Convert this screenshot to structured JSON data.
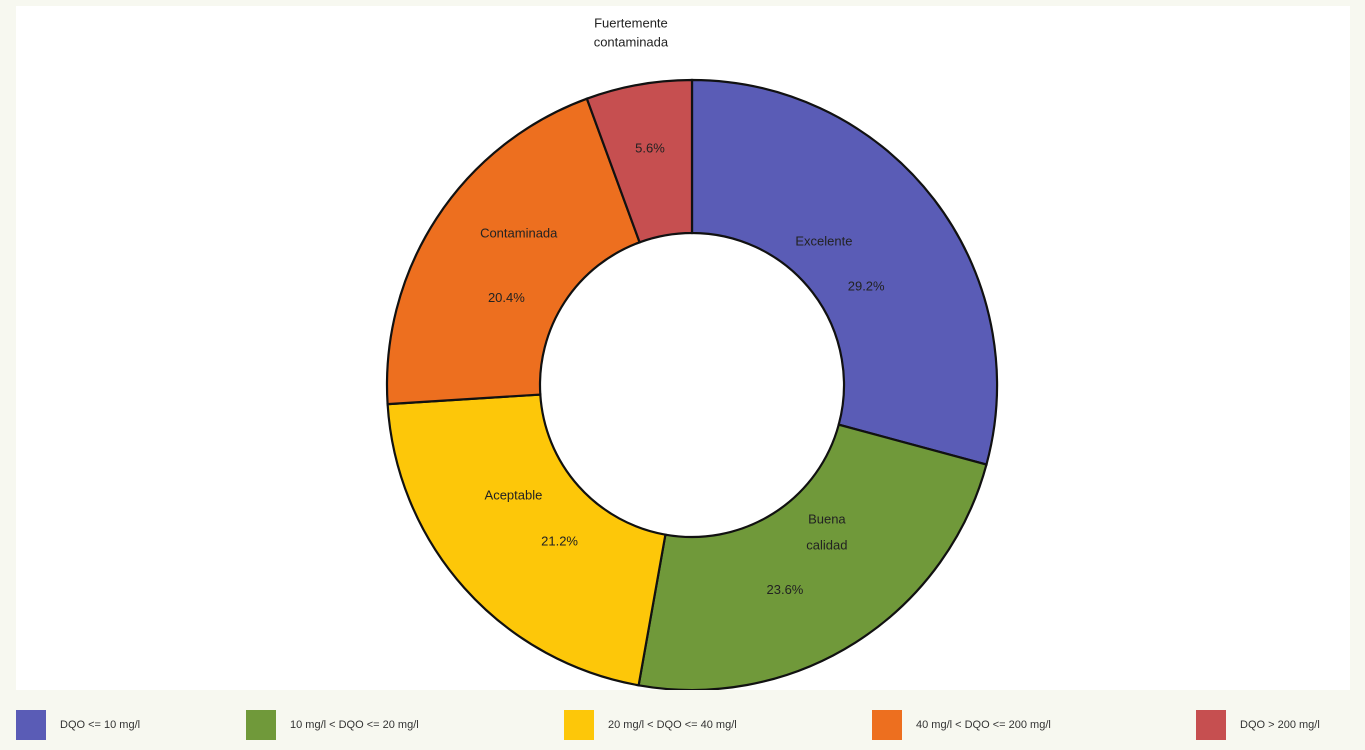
{
  "chart_data": {
    "type": "pie",
    "donut": true,
    "slices": [
      {
        "label": "Excelente",
        "value": 29.2,
        "display": "29.2%",
        "color": "#5a5cb6",
        "legend": "DQO <= 10 mg/l"
      },
      {
        "label": "Buena calidad",
        "value": 23.6,
        "display": "23.6%",
        "color": "#70993a",
        "legend": "10 mg/l < DQO <= 20 mg/l"
      },
      {
        "label": "Aceptable",
        "value": 21.2,
        "display": "21.2%",
        "color": "#fdc709",
        "legend": "20 mg/l < DQO <= 40 mg/l"
      },
      {
        "label": "Contaminada",
        "value": 20.4,
        "display": "20.4%",
        "color": "#ed6f1f",
        "legend": "40 mg/l < DQO <= 200 mg/l"
      },
      {
        "label": "Fuertemente contaminada",
        "value": 5.6,
        "display": "5.6%",
        "color": "#c64f50",
        "legend": "DQO > 200 mg/l"
      }
    ],
    "legend_position": "bottom"
  }
}
